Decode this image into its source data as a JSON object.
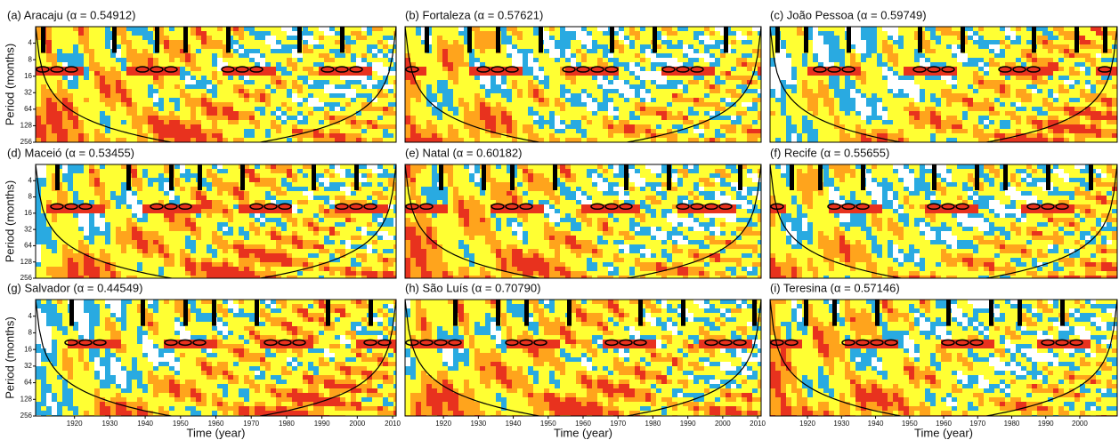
{
  "chart_data": [
    {
      "type": "wavelet",
      "title": "(a) Aracaju (α = 0.54912)",
      "ylabel": "Period (months)",
      "ylim": [
        2,
        256
      ],
      "log_y": true,
      "yticks": [
        4,
        8,
        16,
        32,
        64,
        128,
        256
      ],
      "xlim": [
        1909,
        2011
      ]
    },
    {
      "type": "wavelet",
      "title": "(b) Fortaleza (α = 0.57621)",
      "ylim": [
        2,
        256
      ],
      "log_y": true,
      "xlim": [
        1909,
        2011
      ]
    },
    {
      "type": "wavelet",
      "title": "(c) João Pessoa (α = 0.59749)",
      "ylim": [
        2,
        256
      ],
      "log_y": true,
      "xlim": [
        1909,
        2011
      ]
    },
    {
      "type": "wavelet",
      "title": "(d) Maceió (α = 0.53455)",
      "ylabel": "Period (months)",
      "ylim": [
        2,
        256
      ],
      "log_y": true,
      "yticks": [
        4,
        8,
        16,
        32,
        64,
        128,
        256
      ],
      "xlim": [
        1909,
        2011
      ]
    },
    {
      "type": "wavelet",
      "title": "(e) Natal (α = 0.60182)",
      "ylim": [
        2,
        256
      ],
      "log_y": true,
      "xlim": [
        1909,
        2011
      ]
    },
    {
      "type": "wavelet",
      "title": "(f) Recife  (α = 0.55655)",
      "ylim": [
        2,
        256
      ],
      "log_y": true,
      "xlim": [
        1909,
        2011
      ]
    },
    {
      "type": "wavelet",
      "title": "(g) Salvador (α = 0.44549)",
      "ylabel": "Period (months)",
      "xlabel": "Time (year)",
      "ylim": [
        2,
        256
      ],
      "log_y": true,
      "yticks": [
        4,
        8,
        16,
        32,
        64,
        128,
        256
      ],
      "xlim": [
        1909,
        2011
      ],
      "xticks": [
        1920,
        1930,
        1940,
        1950,
        1960,
        1970,
        1980,
        1990,
        2000,
        2010
      ]
    },
    {
      "type": "wavelet",
      "title": "(h) São Luís (α = 0.70790)",
      "xlabel": "Time (year)",
      "ylim": [
        2,
        256
      ],
      "log_y": true,
      "xlim": [
        1909,
        2011
      ],
      "xticks": [
        1920,
        1930,
        1940,
        1950,
        1960,
        1970,
        1980,
        1990,
        2000,
        2010
      ]
    },
    {
      "type": "wavelet",
      "title": "(i) Teresina  (α = 0.57146)",
      "xlabel": "Time (year)",
      "ylim": [
        2,
        256
      ],
      "log_y": true,
      "xlim": [
        1909,
        2011
      ],
      "xticks": [
        1920,
        1930,
        1940,
        1950,
        1960,
        1970,
        1980,
        1990,
        2000
      ]
    }
  ]
}
